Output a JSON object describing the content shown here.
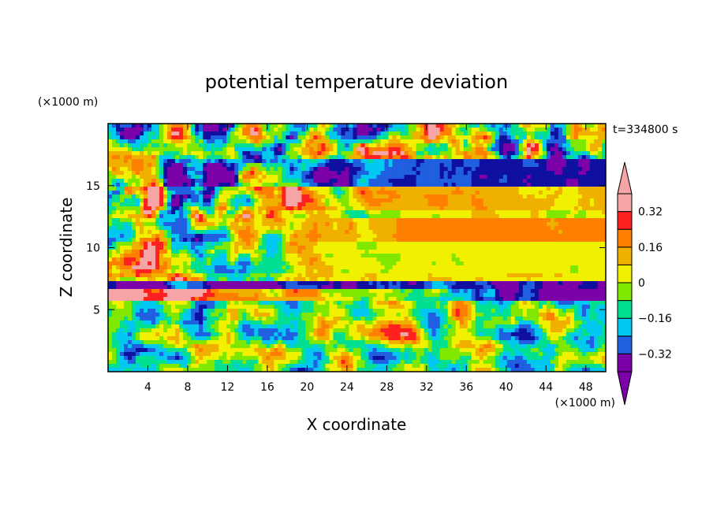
{
  "chart_data": {
    "type": "heatmap",
    "title": "potential temperature deviation",
    "xlabel": "X coordinate",
    "ylabel": "Z coordinate",
    "x_unit": "(×1000 m)",
    "y_unit": "(×1000 m)",
    "time_label": "t=334800 s",
    "xlim": [
      0,
      50
    ],
    "ylim": [
      0,
      20
    ],
    "x_ticks": [
      4,
      8,
      12,
      16,
      20,
      24,
      28,
      32,
      36,
      40,
      44,
      48
    ],
    "y_ticks": [
      5,
      10,
      15
    ],
    "legend_placement": "right",
    "colorbar": {
      "levels": [
        -0.4,
        -0.32,
        -0.24,
        -0.16,
        -0.08,
        0,
        0.08,
        0.16,
        0.24,
        0.32,
        0.4
      ],
      "tick_labels": [
        "−0.32",
        "−0.16",
        "0",
        "0.16",
        "0.32"
      ],
      "tick_values": [
        -0.32,
        -0.16,
        0,
        0.16,
        0.32
      ],
      "colors": [
        "#7b00a8",
        "#0f0fa0",
        "#1f5fe0",
        "#00c8f0",
        "#00e090",
        "#80e800",
        "#f0f000",
        "#f0b000",
        "#ff7f00",
        "#ff2020",
        "#f5a5a5"
      ],
      "extend": "both"
    }
  }
}
